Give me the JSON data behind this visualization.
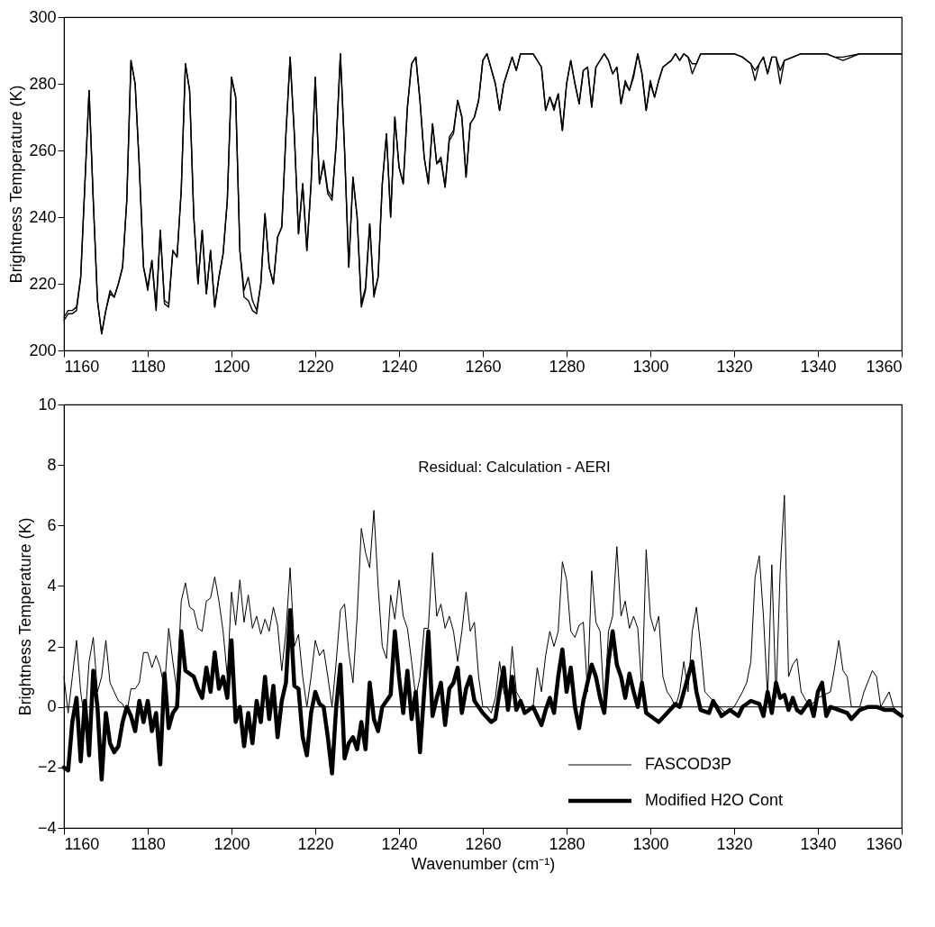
{
  "chart_data": [
    {
      "type": "line",
      "ylabel": "Brightness Temperature (K)",
      "xlim": [
        1160,
        1360
      ],
      "xticks": [
        1160,
        1180,
        1200,
        1220,
        1240,
        1260,
        1280,
        1300,
        1320,
        1340,
        1360
      ],
      "ylim": [
        200,
        300
      ],
      "yticks": [
        200,
        220,
        240,
        260,
        280,
        300
      ],
      "x": [
        1160,
        1161,
        1162,
        1163,
        1164,
        1165,
        1166,
        1167,
        1168,
        1169,
        1170,
        1171,
        1172,
        1173,
        1174,
        1175,
        1176,
        1177,
        1178,
        1179,
        1180,
        1181,
        1182,
        1183,
        1184,
        1185,
        1186,
        1187,
        1188,
        1189,
        1190,
        1191,
        1192,
        1193,
        1194,
        1195,
        1196,
        1197,
        1198,
        1199,
        1200,
        1201,
        1202,
        1203,
        1204,
        1205,
        1206,
        1207,
        1208,
        1209,
        1210,
        1211,
        1212,
        1213,
        1214,
        1215,
        1216,
        1217,
        1218,
        1219,
        1220,
        1221,
        1222,
        1223,
        1224,
        1225,
        1226,
        1227,
        1228,
        1229,
        1230,
        1231,
        1232,
        1233,
        1234,
        1235,
        1236,
        1237,
        1238,
        1239,
        1240,
        1241,
        1242,
        1243,
        1244,
        1245,
        1246,
        1247,
        1248,
        1249,
        1250,
        1251,
        1252,
        1253,
        1254,
        1255,
        1256,
        1257,
        1258,
        1259,
        1260,
        1261,
        1263,
        1264,
        1265,
        1267,
        1268,
        1269,
        1272,
        1274,
        1275,
        1276,
        1277,
        1278,
        1279,
        1280,
        1281,
        1282,
        1283,
        1284,
        1285,
        1286,
        1287,
        1289,
        1290,
        1291,
        1292,
        1293,
        1294,
        1295,
        1296,
        1297,
        1298,
        1299,
        1300,
        1301,
        1302,
        1303,
        1305,
        1306,
        1307,
        1308,
        1309,
        1310,
        1311,
        1312,
        1320,
        1322,
        1324,
        1325,
        1326,
        1327,
        1328,
        1329,
        1330,
        1331,
        1332,
        1334,
        1336,
        1340,
        1342,
        1344,
        1346,
        1350,
        1355,
        1360
      ],
      "series": [
        {
          "color": "#000000",
          "values": [
            209,
            211,
            211,
            212,
            222,
            250,
            278,
            245,
            215,
            205,
            212,
            218,
            216,
            220,
            225,
            245,
            287,
            280,
            255,
            225,
            218,
            227,
            212,
            236,
            214,
            213,
            230,
            228,
            248,
            286,
            278,
            240,
            220,
            236,
            217,
            230,
            213,
            222,
            229,
            245,
            282,
            276,
            230,
            218,
            222,
            215,
            212,
            220,
            241,
            225,
            220,
            234,
            237,
            265,
            288,
            265,
            235,
            250,
            230,
            250,
            282,
            250,
            257,
            248,
            246,
            262,
            289,
            260,
            225,
            252,
            240,
            213,
            218,
            238,
            216,
            222,
            250,
            265,
            240,
            270,
            255,
            250,
            273,
            286,
            288,
            275,
            258,
            250,
            268,
            256,
            258,
            249,
            264,
            266,
            275,
            270,
            252,
            268,
            270,
            275,
            287,
            289,
            280,
            272,
            280,
            288,
            284,
            289,
            289,
            285,
            272,
            276,
            273,
            277,
            266,
            280,
            287,
            280,
            274,
            284,
            285,
            273,
            285,
            289,
            287,
            283,
            285,
            274,
            281,
            278,
            283,
            289,
            283,
            272,
            281,
            276,
            281,
            285,
            287,
            289,
            287,
            289,
            288,
            286,
            286,
            289,
            289,
            288,
            286,
            281,
            286,
            288,
            283,
            288,
            288,
            280,
            287,
            288,
            289,
            289,
            289,
            288,
            288,
            289,
            289,
            289
          ]
        },
        {
          "color": "#000000",
          "values": [
            210,
            212,
            212,
            213,
            222,
            250,
            278,
            245,
            215,
            205,
            212,
            217,
            216,
            220,
            225,
            245,
            287,
            280,
            255,
            225,
            219,
            227,
            213,
            236,
            215,
            214,
            230,
            228,
            248,
            286,
            278,
            240,
            220,
            236,
            217,
            230,
            213,
            222,
            229,
            245,
            282,
            276,
            230,
            216,
            215,
            212,
            211,
            220,
            241,
            225,
            220,
            234,
            237,
            265,
            288,
            265,
            235,
            250,
            230,
            250,
            282,
            250,
            256,
            247,
            245,
            262,
            289,
            260,
            225,
            252,
            240,
            214,
            219,
            238,
            217,
            222,
            250,
            265,
            240,
            270,
            255,
            250,
            273,
            286,
            288,
            275,
            258,
            250,
            268,
            256,
            257,
            249,
            263,
            265,
            275,
            270,
            252,
            268,
            270,
            275,
            287,
            289,
            280,
            272,
            280,
            288,
            284,
            289,
            289,
            285,
            272,
            276,
            272,
            277,
            266,
            280,
            287,
            280,
            274,
            284,
            285,
            273,
            285,
            289,
            287,
            283,
            285,
            274,
            280,
            278,
            282,
            289,
            283,
            272,
            280,
            276,
            281,
            285,
            287,
            289,
            287,
            289,
            288,
            283,
            286,
            289,
            289,
            288,
            286,
            284,
            286,
            288,
            283,
            288,
            288,
            284,
            287,
            288,
            289,
            289,
            289,
            288,
            287,
            289,
            289,
            289
          ]
        }
      ]
    },
    {
      "type": "line",
      "xlabel": "Wavenumber (cm⁻¹)",
      "ylabel": "Brightness Temperature (K)",
      "xlim": [
        1160,
        1360
      ],
      "xticks": [
        1160,
        1180,
        1200,
        1220,
        1240,
        1260,
        1280,
        1300,
        1320,
        1340,
        1360
      ],
      "ylim": [
        -4,
        10
      ],
      "yticks": [
        -4,
        -2,
        0,
        2,
        4,
        6,
        8,
        10
      ],
      "legend": "bottom right",
      "ref_lines": [
        {
          "axis": "y",
          "value": 0,
          "color": "#000000"
        }
      ],
      "annotations": [
        "Residual:  Calculation - AERI"
      ],
      "series": [
        {
          "name": "FASCOD3P",
          "color": "#000000",
          "x": [
            1160,
            1161,
            1162,
            1163,
            1164,
            1165,
            1166,
            1167,
            1168,
            1169,
            1170,
            1171,
            1172,
            1173,
            1174,
            1175,
            1176,
            1177,
            1178,
            1179,
            1180,
            1181,
            1182,
            1183,
            1184,
            1185,
            1186,
            1187,
            1188,
            1189,
            1190,
            1191,
            1192,
            1193,
            1194,
            1195,
            1196,
            1197,
            1198,
            1199,
            1200,
            1201,
            1202,
            1203,
            1204,
            1205,
            1206,
            1207,
            1208,
            1209,
            1210,
            1211,
            1212,
            1213,
            1214,
            1215,
            1216,
            1217,
            1218,
            1219,
            1220,
            1221,
            1222,
            1223,
            1224,
            1225,
            1226,
            1227,
            1228,
            1229,
            1230,
            1231,
            1232,
            1233,
            1234,
            1235,
            1236,
            1237,
            1238,
            1239,
            1240,
            1241,
            1242,
            1243,
            1244,
            1245,
            1246,
            1247,
            1248,
            1249,
            1250,
            1251,
            1252,
            1253,
            1254,
            1255,
            1256,
            1257,
            1258,
            1259,
            1260,
            1261,
            1262,
            1263,
            1264,
            1265,
            1266,
            1267,
            1268,
            1270,
            1272,
            1273,
            1274,
            1275,
            1276,
            1277,
            1278,
            1279,
            1280,
            1281,
            1282,
            1283,
            1284,
            1285,
            1286,
            1287,
            1288,
            1289,
            1290,
            1291,
            1292,
            1293,
            1294,
            1295,
            1296,
            1297,
            1298,
            1299,
            1300,
            1301,
            1302,
            1303,
            1304,
            1305,
            1306,
            1307,
            1308,
            1309,
            1310,
            1311,
            1312,
            1313,
            1315,
            1318,
            1320,
            1322,
            1323,
            1324,
            1325,
            1326,
            1327,
            1328,
            1329,
            1330,
            1331,
            1332,
            1333,
            1334,
            1335,
            1336,
            1338,
            1340,
            1343,
            1344,
            1345,
            1346,
            1347,
            1348,
            1350,
            1351,
            1353,
            1354,
            1355,
            1357,
            1358,
            1360
          ],
          "values": [
            1.0,
            -0.2,
            1.0,
            2.2,
            0.5,
            -0.5,
            1.5,
            2.3,
            0.5,
            1.0,
            2.2,
            0.8,
            0.5,
            0.2,
            0.1,
            -0.2,
            0.6,
            0.6,
            0.8,
            1.8,
            1.8,
            1.3,
            1.7,
            1.3,
            0.6,
            2.6,
            1.5,
            0.5,
            3.5,
            4.1,
            3.3,
            3.2,
            2.6,
            2.5,
            3.5,
            3.6,
            4.3,
            3.5,
            2.5,
            1.0,
            3.8,
            2.7,
            4.2,
            2.8,
            3.7,
            2.6,
            3.0,
            2.4,
            2.9,
            2.5,
            3.3,
            2.7,
            1.2,
            2.5,
            4.6,
            2.0,
            2.4,
            1.0,
            0.0,
            1.0,
            2.2,
            1.7,
            1.9,
            1.0,
            0.0,
            1.5,
            3.2,
            3.4,
            1.8,
            0.8,
            3.0,
            5.9,
            5.1,
            4.6,
            6.5,
            4.0,
            2.0,
            1.6,
            3.7,
            2.9,
            4.2,
            3.0,
            2.6,
            1.5,
            0.3,
            1.0,
            2.6,
            2.6,
            5.1,
            3.0,
            3.4,
            2.6,
            3.0,
            2.5,
            1.5,
            2.5,
            3.8,
            2.5,
            2.8,
            1.0,
            0.0,
            0.0,
            -0.2,
            0.3,
            1.5,
            0.5,
            0.0,
            2.0,
            0.5,
            0.0,
            0.0,
            1.3,
            0.5,
            1.7,
            2.5,
            2.0,
            2.5,
            4.8,
            4.2,
            2.5,
            2.3,
            2.7,
            2.8,
            0.5,
            4.5,
            2.8,
            2.5,
            0.0,
            2.5,
            3.0,
            5.3,
            3.0,
            3.5,
            2.6,
            3.0,
            2.6,
            0.5,
            5.2,
            3.0,
            2.5,
            3.0,
            1.0,
            0.5,
            0.3,
            0.0,
            0.5,
            1.5,
            0.5,
            2.5,
            3.3,
            2.0,
            0.5,
            0.2,
            -0.2,
            0.0,
            0.5,
            0.8,
            1.5,
            4.3,
            5.0,
            3.0,
            0.3,
            4.7,
            0.3,
            4.5,
            7.0,
            1.0,
            1.4,
            1.6,
            0.5,
            0.0,
            0.3,
            0.5,
            1.3,
            2.2,
            1.2,
            1.0,
            0.0,
            0.0,
            0.5,
            1.2,
            1.0,
            0.0,
            0.5,
            0.0,
            -0.3
          ]
        },
        {
          "name": "Modified H2O Cont",
          "color": "#000000",
          "x": [
            1160,
            1161,
            1162,
            1163,
            1164,
            1165,
            1166,
            1167,
            1168,
            1169,
            1170,
            1171,
            1172,
            1173,
            1174,
            1175,
            1176,
            1177,
            1178,
            1179,
            1180,
            1181,
            1182,
            1183,
            1184,
            1185,
            1186,
            1187,
            1188,
            1189,
            1190,
            1191,
            1192,
            1193,
            1194,
            1195,
            1196,
            1197,
            1198,
            1199,
            1200,
            1201,
            1202,
            1203,
            1204,
            1205,
            1206,
            1207,
            1208,
            1209,
            1210,
            1211,
            1212,
            1213,
            1214,
            1215,
            1216,
            1217,
            1218,
            1219,
            1220,
            1221,
            1222,
            1223,
            1224,
            1225,
            1226,
            1227,
            1228,
            1229,
            1230,
            1231,
            1232,
            1233,
            1234,
            1235,
            1236,
            1237,
            1238,
            1239,
            1240,
            1241,
            1242,
            1243,
            1244,
            1245,
            1246,
            1247,
            1248,
            1249,
            1250,
            1251,
            1252,
            1253,
            1254,
            1255,
            1256,
            1257,
            1258,
            1259,
            1260,
            1262,
            1263,
            1264,
            1265,
            1266,
            1267,
            1268,
            1269,
            1270,
            1272,
            1274,
            1275,
            1276,
            1277,
            1278,
            1279,
            1280,
            1281,
            1282,
            1283,
            1284,
            1285,
            1286,
            1287,
            1288,
            1289,
            1290,
            1291,
            1292,
            1293,
            1294,
            1295,
            1296,
            1297,
            1298,
            1299,
            1300,
            1302,
            1304,
            1306,
            1307,
            1308,
            1309,
            1310,
            1311,
            1312,
            1314,
            1315,
            1317,
            1319,
            1321,
            1322,
            1324,
            1326,
            1327,
            1328,
            1329,
            1330,
            1331,
            1332,
            1333,
            1334,
            1335,
            1336,
            1338,
            1339,
            1340,
            1341,
            1342,
            1343,
            1345,
            1347,
            1348,
            1350,
            1352,
            1354,
            1356,
            1358,
            1360
          ],
          "values": [
            -2.0,
            -2.1,
            -0.5,
            0.3,
            -1.8,
            0.2,
            -1.6,
            1.2,
            0.0,
            -2.4,
            -0.2,
            -1.2,
            -1.5,
            -1.3,
            -0.5,
            0.0,
            -0.3,
            -0.8,
            0.2,
            -0.5,
            0.2,
            -0.8,
            -0.2,
            -1.9,
            1.1,
            -0.7,
            -0.2,
            0.0,
            2.5,
            1.2,
            1.1,
            1.0,
            0.6,
            0.3,
            1.3,
            0.5,
            1.8,
            0.6,
            1.0,
            0.3,
            2.2,
            -0.5,
            0.0,
            -1.3,
            -0.2,
            -1.2,
            0.2,
            -0.5,
            1.0,
            -0.4,
            0.7,
            -1.0,
            0.2,
            0.8,
            3.2,
            0.7,
            0.6,
            -1.0,
            -1.6,
            -0.2,
            0.5,
            0.1,
            0.0,
            -1.0,
            -2.2,
            0.0,
            1.4,
            -1.7,
            -1.2,
            -1.0,
            -1.4,
            -0.5,
            -1.4,
            0.8,
            -0.4,
            -0.8,
            0.0,
            0.2,
            0.4,
            2.5,
            1.0,
            -0.2,
            1.2,
            -0.4,
            0.5,
            -1.5,
            0.5,
            2.5,
            -0.3,
            0.3,
            0.8,
            -0.6,
            0.6,
            0.8,
            1.3,
            -0.2,
            0.6,
            1.0,
            0.2,
            0.0,
            -0.2,
            -0.5,
            -0.4,
            0.5,
            1.3,
            -0.1,
            1.0,
            -0.1,
            0.2,
            -0.2,
            0.0,
            -0.6,
            -0.1,
            0.3,
            -0.2,
            1.0,
            1.9,
            0.5,
            1.3,
            0.0,
            -0.7,
            0.2,
            0.8,
            1.4,
            1.0,
            0.3,
            -0.2,
            1.5,
            2.5,
            1.4,
            1.0,
            0.3,
            1.1,
            0.5,
            0.0,
            0.8,
            -0.2,
            -0.3,
            -0.5,
            -0.2,
            0.1,
            0.0,
            0.5,
            1.0,
            1.5,
            0.5,
            -0.1,
            -0.2,
            0.2,
            -0.3,
            -0.1,
            -0.3,
            0.0,
            0.2,
            0.1,
            -0.3,
            0.5,
            -0.2,
            0.8,
            0.3,
            0.4,
            -0.1,
            0.3,
            -0.1,
            -0.2,
            0.2,
            -0.3,
            0.5,
            0.8,
            -0.3,
            0.0,
            -0.1,
            -0.2,
            -0.4,
            -0.1,
            0.0,
            0.0,
            -0.1,
            -0.1,
            -0.3
          ]
        }
      ]
    }
  ]
}
